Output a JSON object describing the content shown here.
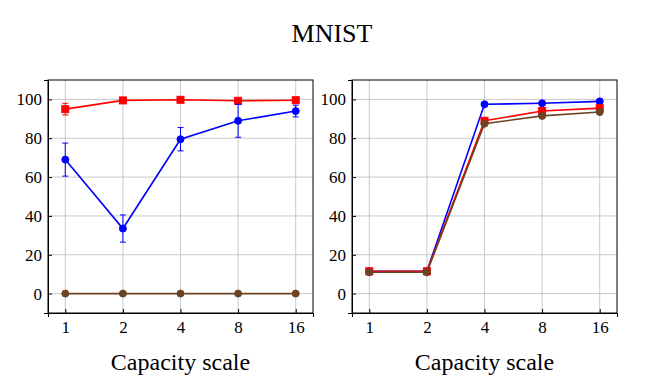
{
  "title": "MNIST",
  "chart_data": [
    {
      "type": "line",
      "x_label": "Capacity scale",
      "categories": [
        "1",
        "2",
        "4",
        "8",
        "16"
      ],
      "ylim": [
        -10,
        110
      ],
      "yticks": [
        0,
        20,
        40,
        60,
        80,
        100
      ],
      "grid": true,
      "series": [
        {
          "color": "#ff0000",
          "marker": "square",
          "values": [
            95,
            99.5,
            99.8,
            99.3,
            99.6
          ],
          "errors": [
            3,
            1,
            0.5,
            1,
            1
          ]
        },
        {
          "color": "#0000ff",
          "marker": "circle",
          "values": [
            69,
            33.5,
            79.5,
            89,
            94
          ],
          "errors": [
            8.5,
            7,
            6,
            8.5,
            3
          ]
        },
        {
          "color": "#6b4423",
          "marker": "circle",
          "values": [
            0,
            0,
            0,
            0,
            0
          ]
        }
      ]
    },
    {
      "type": "line",
      "x_label": "Capacity scale",
      "categories": [
        "1",
        "2",
        "4",
        "8",
        "16"
      ],
      "ylim": [
        -10,
        110
      ],
      "yticks": [
        0,
        20,
        40,
        60,
        80,
        100
      ],
      "grid": true,
      "series": [
        {
          "color": "#0000ff",
          "marker": "circle",
          "values": [
            11.5,
            11.5,
            97.5,
            98,
            99
          ]
        },
        {
          "color": "#ff0000",
          "marker": "square",
          "values": [
            11.5,
            11.5,
            89,
            94,
            95.5
          ]
        },
        {
          "color": "#6b4423",
          "marker": "circle",
          "values": [
            11,
            11,
            87.5,
            91.5,
            93.5
          ]
        }
      ]
    }
  ]
}
